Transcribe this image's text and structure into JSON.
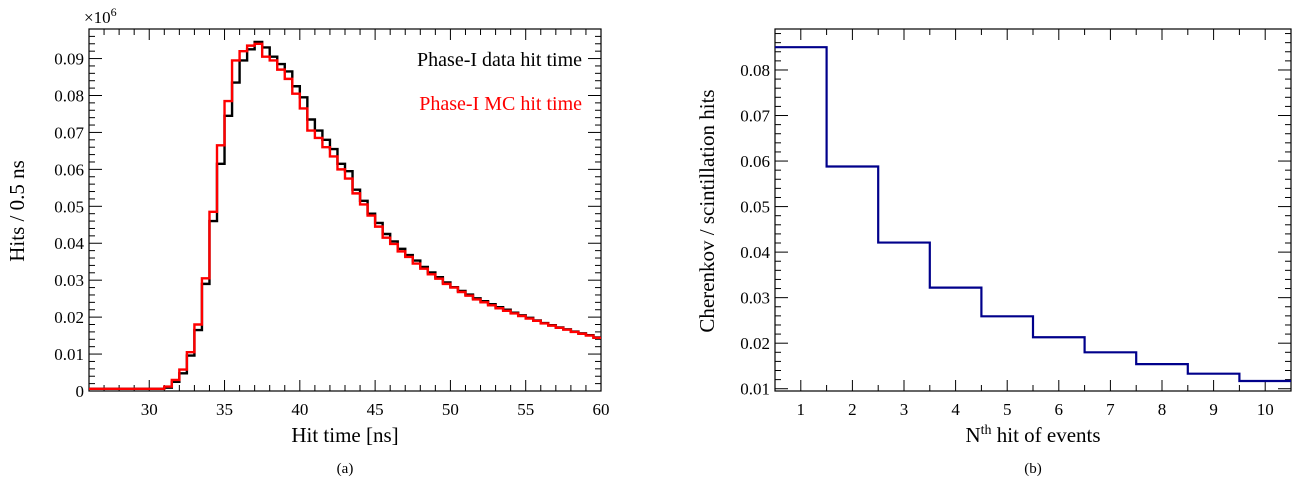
{
  "figure": {
    "panel_a_caption": "(a)",
    "panel_b_caption": "(b)"
  },
  "chart_data": [
    {
      "type": "histogram-step",
      "panel": "(a)",
      "xlabel": "Hit time [ns]",
      "ylabel": "Hits / 0.5 ns",
      "y_multiplier": "×10",
      "y_multiplier_exp": "6",
      "xlim": [
        26,
        60
      ],
      "ylim": [
        0,
        0.098
      ],
      "x_ticks": [
        30,
        35,
        40,
        45,
        50,
        55,
        60
      ],
      "y_ticks": [
        0,
        0.01,
        0.02,
        0.03,
        0.04,
        0.05,
        0.06,
        0.07,
        0.08,
        0.09
      ],
      "grid": false,
      "legend_position": "top-right",
      "series": [
        {
          "name": "Phase-I data hit time",
          "color": "#000000",
          "bin_width": 0.5,
          "x": [
            26,
            26.5,
            27,
            27.5,
            28,
            28.5,
            29,
            29.5,
            30,
            30.5,
            31,
            31.5,
            32,
            32.5,
            33,
            33.5,
            34,
            34.5,
            35,
            35.5,
            36,
            36.5,
            37,
            37.5,
            38,
            38.5,
            39,
            39.5,
            40,
            40.5,
            41,
            41.5,
            42,
            42.5,
            43,
            43.5,
            44,
            44.5,
            45,
            45.5,
            46,
            46.5,
            47,
            47.5,
            48,
            48.5,
            49,
            49.5,
            50,
            50.5,
            51,
            51.5,
            52,
            52.5,
            53,
            53.5,
            54,
            54.5,
            55,
            55.5,
            56,
            56.5,
            57,
            57.5,
            58,
            58.5,
            59,
            59.5
          ],
          "values": [
            0.0006,
            0.0006,
            0.0006,
            0.0006,
            0.0006,
            0.0006,
            0.0006,
            0.0006,
            0.0006,
            0.0006,
            0.0009,
            0.0025,
            0.0048,
            0.0096,
            0.0165,
            0.029,
            0.046,
            0.0615,
            0.0745,
            0.0835,
            0.0895,
            0.0925,
            0.0945,
            0.093,
            0.0905,
            0.0885,
            0.0865,
            0.0825,
            0.0795,
            0.0735,
            0.0705,
            0.068,
            0.0655,
            0.0615,
            0.0595,
            0.0545,
            0.0515,
            0.048,
            0.0455,
            0.0425,
            0.0405,
            0.0385,
            0.0368,
            0.0353,
            0.0336,
            0.0321,
            0.0308,
            0.0294,
            0.0281,
            0.0271,
            0.0261,
            0.0251,
            0.0243,
            0.0235,
            0.0227,
            0.022,
            0.0212,
            0.0205,
            0.0198,
            0.0191,
            0.0184,
            0.0178,
            0.0172,
            0.0167,
            0.0161,
            0.0156,
            0.0151,
            0.0145
          ]
        },
        {
          "name": "Phase-I MC hit time",
          "color": "#ff0000",
          "bin_width": 0.5,
          "x": [
            26,
            26.5,
            27,
            27.5,
            28,
            28.5,
            29,
            29.5,
            30,
            30.5,
            31,
            31.5,
            32,
            32.5,
            33,
            33.5,
            34,
            34.5,
            35,
            35.5,
            36,
            36.5,
            37,
            37.5,
            38,
            38.5,
            39,
            39.5,
            40,
            40.5,
            41,
            41.5,
            42,
            42.5,
            43,
            43.5,
            44,
            44.5,
            45,
            45.5,
            46,
            46.5,
            47,
            47.5,
            48,
            48.5,
            49,
            49.5,
            50,
            50.5,
            51,
            51.5,
            52,
            52.5,
            53,
            53.5,
            54,
            54.5,
            55,
            55.5,
            56,
            56.5,
            57,
            57.5,
            58,
            58.5,
            59,
            59.5
          ],
          "values": [
            0.0006,
            0.0006,
            0.0006,
            0.0006,
            0.0006,
            0.0006,
            0.0006,
            0.0006,
            0.0006,
            0.0006,
            0.0012,
            0.003,
            0.0058,
            0.0105,
            0.018,
            0.0305,
            0.0485,
            0.0665,
            0.0785,
            0.0895,
            0.092,
            0.0935,
            0.094,
            0.0905,
            0.0895,
            0.087,
            0.0845,
            0.0805,
            0.0765,
            0.0705,
            0.0685,
            0.066,
            0.0635,
            0.06,
            0.0575,
            0.0535,
            0.0505,
            0.0475,
            0.0445,
            0.0415,
            0.0398,
            0.0378,
            0.0363,
            0.0345,
            0.0331,
            0.0316,
            0.0304,
            0.029,
            0.028,
            0.0268,
            0.0258,
            0.0248,
            0.024,
            0.0232,
            0.0224,
            0.0217,
            0.021,
            0.0203,
            0.0196,
            0.019,
            0.0183,
            0.0177,
            0.0171,
            0.0166,
            0.016,
            0.0155,
            0.015,
            0.0144
          ]
        }
      ]
    },
    {
      "type": "histogram-step",
      "panel": "(b)",
      "xlabel_base": "N",
      "xlabel_sup": "th",
      "xlabel_rest": " hit of events",
      "ylabel": "Cherenkov / scintillation hits",
      "xlim": [
        0.5,
        10.5
      ],
      "ylim": [
        0.0095,
        0.089
      ],
      "x_ticks": [
        1,
        2,
        3,
        4,
        5,
        6,
        7,
        8,
        9,
        10
      ],
      "y_ticks": [
        0.01,
        0.02,
        0.03,
        0.04,
        0.05,
        0.06,
        0.07,
        0.08
      ],
      "grid": false,
      "series": [
        {
          "color": "#00008b",
          "categories": [
            1,
            2,
            3,
            4,
            5,
            6,
            7,
            8,
            9,
            10
          ],
          "values": [
            0.085,
            0.0588,
            0.0421,
            0.0322,
            0.0259,
            0.0213,
            0.018,
            0.0154,
            0.0133,
            0.0117
          ]
        }
      ]
    }
  ]
}
